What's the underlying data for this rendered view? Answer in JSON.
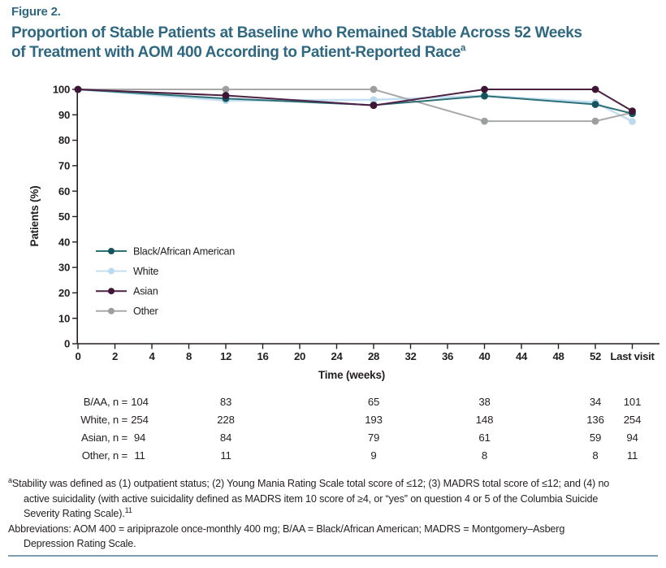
{
  "figure": {
    "label": "Figure 2.",
    "title_line1": "Proportion of Stable Patients at Baseline who Remained Stable Across 52 Weeks",
    "title_line2": "of Treatment with AOM 400 According to Patient-Reported Race",
    "title_superscript": "a"
  },
  "chart_data": {
    "type": "line",
    "title": "Proportion of Stable Patients at Baseline who Remained Stable Across 52 Weeks of Treatment with AOM 400 According to Patient-Reported Race",
    "xlabel": "Time (weeks)",
    "ylabel": "Patients (%)",
    "x_categories": [
      "0",
      "2",
      "4",
      "8",
      "12",
      "16",
      "20",
      "24",
      "28",
      "32",
      "36",
      "40",
      "44",
      "48",
      "52",
      "Last visit"
    ],
    "data_tick_indices": [
      0,
      4,
      8,
      11,
      14,
      15
    ],
    "data_weeks": [
      "0",
      "12",
      "28",
      "40",
      "52",
      "Last visit"
    ],
    "yticks": [
      0,
      10,
      20,
      30,
      40,
      50,
      60,
      70,
      80,
      90,
      100
    ],
    "ylim": [
      0,
      100
    ],
    "grid": "off",
    "legend_position": "inside-left",
    "axis_color": "#231f20",
    "series": [
      {
        "name": "Black/African American",
        "color": "#2b7076",
        "marker_color": "#14545c",
        "values": [
          100,
          96.4,
          93.8,
          97.4,
          94.1,
          90.5
        ]
      },
      {
        "name": "White",
        "color": "#c3dff1",
        "marker_color": "#bcdaee",
        "values": [
          100,
          95.6,
          95.9,
          97.5,
          94.9,
          87.4
        ]
      },
      {
        "name": "Asian",
        "color": "#4c2144",
        "marker_color": "#3f1536",
        "values": [
          100,
          97.6,
          93.7,
          100,
          100,
          91.5
        ]
      },
      {
        "name": "Other",
        "color": "#a9a9a9",
        "marker_color": "#9c9ea0",
        "values": [
          100,
          100,
          100,
          87.5,
          87.5,
          90.9
        ]
      }
    ]
  },
  "n_table": {
    "rows": [
      {
        "label": "B/AA, n =",
        "values": [
          "104",
          "83",
          "65",
          "38",
          "34",
          "101"
        ]
      },
      {
        "label": "White, n =",
        "values": [
          "254",
          "228",
          "193",
          "148",
          "136",
          "254"
        ]
      },
      {
        "label": "Asian, n =",
        "values": [
          "94",
          "84",
          "79",
          "61",
          "59",
          "94"
        ]
      },
      {
        "label": "Other, n =",
        "values": [
          "11",
          "11",
          "9",
          "8",
          "8",
          "11"
        ]
      }
    ]
  },
  "footnotes": {
    "stability_sup": "a",
    "stability_line1": "Stability was defined as (1) outpatient status; (2) Young Mania Rating Scale total score of ≤12; (3) MADRS total score of ≤12; and (4) no",
    "stability_line2": "active suicidality (with active suicidality defined as MADRS item 10 score of ≥4, or “yes” on question 4 or 5 of the Columbia Suicide",
    "stability_line3": "Severity Rating Scale).",
    "stability_line3_sup": "11",
    "abbrev_line1": "Abbreviations: AOM 400 = aripiprazole once-monthly 400 mg; B/AA = Black/African American; MADRS = Montgomery–Asberg",
    "abbrev_line2": "Depression Rating Scale."
  }
}
